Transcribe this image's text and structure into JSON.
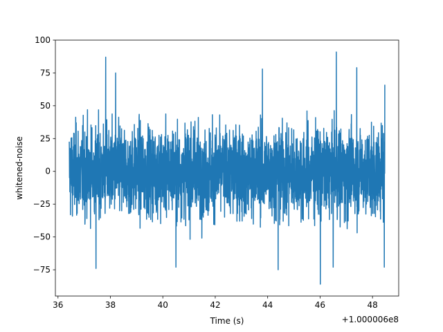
{
  "chart_data": {
    "type": "line",
    "title": "",
    "xlabel": "Time (s)",
    "ylabel": "whitened-noise",
    "x_offset_label": "+1.000006e8",
    "xlim": [
      35.9,
      49.0
    ],
    "ylim": [
      -95,
      100
    ],
    "x_ticks": [
      36,
      38,
      40,
      42,
      44,
      46,
      48
    ],
    "x_tick_labels": [
      "36",
      "38",
      "40",
      "42",
      "44",
      "46",
      "48"
    ],
    "y_ticks": [
      -75,
      -50,
      -25,
      0,
      25,
      50,
      75,
      100
    ],
    "y_tick_labels": [
      "−75",
      "−50",
      "−25",
      "0",
      "25",
      "50",
      "75",
      "100"
    ],
    "grid": false,
    "legend": "none",
    "series_color": "#1f77b4",
    "series": [
      {
        "x_range": [
          36.43,
          48.47
        ],
        "typical_band": [
          -45,
          45
        ],
        "notable_points": [
          {
            "x": 37.82,
            "y": 87
          },
          {
            "x": 46.62,
            "y": 91
          },
          {
            "x": 46.01,
            "y": -86
          },
          {
            "x": 37.45,
            "y": -74
          },
          {
            "x": 38.2,
            "y": 75
          },
          {
            "x": 43.8,
            "y": 78
          },
          {
            "x": 47.4,
            "y": 79
          },
          {
            "x": 40.5,
            "y": -73
          },
          {
            "x": 44.4,
            "y": -75
          },
          {
            "x": 46.5,
            "y": -73
          },
          {
            "x": 48.45,
            "y": -73
          },
          {
            "x": 48.47,
            "y": 66
          }
        ]
      }
    ]
  }
}
